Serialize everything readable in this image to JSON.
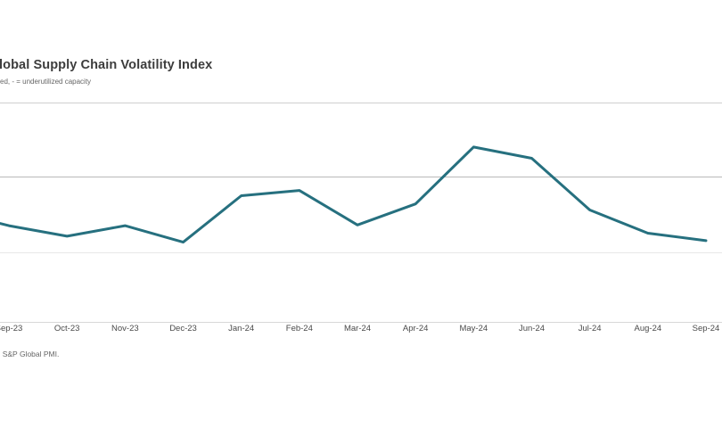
{
  "header": {
    "title": "lobal Supply Chain Volatility Index",
    "subtitle": "ed, - = underutilized capacity"
  },
  "footer": {
    "source": ", S&P Global PMI."
  },
  "chart_data": {
    "type": "line",
    "title": "lobal Supply Chain Volatility Index",
    "subtitle": "ed, - = underutilized capacity",
    "source_note": ", S&P Global PMI.",
    "categories": [
      "Sep-23",
      "Oct-23",
      "Nov-23",
      "Dec-23",
      "Jan-24",
      "Feb-24",
      "Mar-24",
      "Apr-24",
      "May-24",
      "Jun-24",
      "Jul-24",
      "Aug-24",
      "Sep-24"
    ],
    "series": [
      {
        "name": "Global Supply Chain Volatility Index",
        "values": [
          -0.65,
          -0.79,
          -0.65,
          -0.87,
          -0.25,
          -0.18,
          -0.64,
          -0.36,
          0.4,
          0.25,
          -0.44,
          -0.75,
          -0.85
        ]
      }
    ],
    "left_edge_entry_value": -0.62,
    "value_unit_note": "y-axis labels are cropped out of the screenshot; values are in gridline units (middle gridline = 0, one gridline spacing = 1)",
    "axis": {
      "x_labels_visible": true,
      "y_labels_visible": false,
      "horizontal_gridlines": 3,
      "baseline": true
    },
    "legend": "none",
    "colors": {
      "line": "#26707f",
      "grid_top": "#cfcfcf",
      "grid_mid": "#b9b9b9",
      "grid_low": "#e8e8e8",
      "axis_line": "#d8d8d8",
      "title_text": "#3d3d3d",
      "muted_text": "#666666",
      "background": "#ffffff"
    }
  }
}
